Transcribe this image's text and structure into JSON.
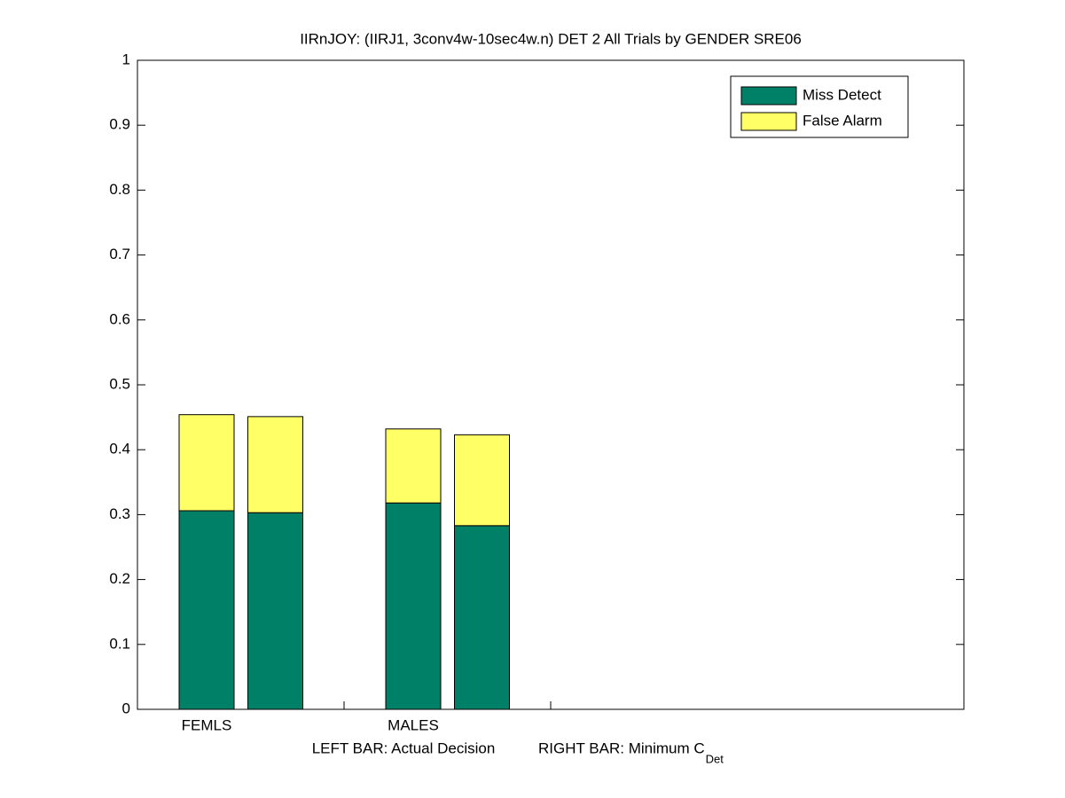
{
  "chart_data": {
    "type": "stacked_bar",
    "title": "IIRnJOY: (IIRJ1, 3conv4w-10sec4w.n) DET 2 All Trials by GENDER SRE06",
    "x_label": "LEFT BAR: Actual Decision",
    "x_label_2": "RIGHT BAR: Minimum C",
    "x_label_2_subscript": "Det",
    "categories": [
      "FEMLS",
      null,
      "MALES",
      null
    ],
    "series": [
      {
        "name": "Miss Detect",
        "color": "#008066",
        "values": [
          0.306,
          0.303,
          0.318,
          0.283
        ]
      },
      {
        "name": "False Alarm",
        "color": "#ffff66",
        "values": [
          0.148,
          0.148,
          0.114,
          0.14
        ]
      }
    ],
    "ylim": [
      0,
      1
    ],
    "yticks": [
      0,
      0.1,
      0.2,
      0.3,
      0.4,
      0.5,
      0.6,
      0.7,
      0.8,
      0.9,
      1
    ],
    "legend": "upper right"
  }
}
